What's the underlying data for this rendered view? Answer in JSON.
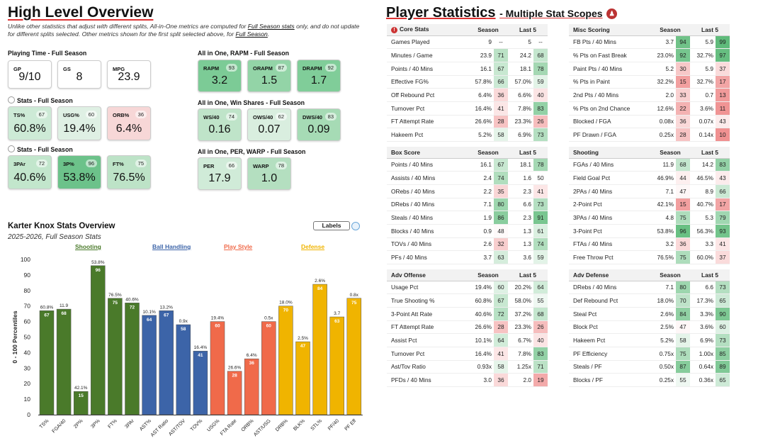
{
  "overview": {
    "title": "High Level Overview",
    "note": [
      "Unlike other statistics that adjust with different splits, All-in-One metrics are computed for ",
      "Full Season stats",
      " only, and do not update",
      "for different splits selected. Other metrics shown for the first split selected above, for ",
      "Full Season",
      "."
    ],
    "playing_time": {
      "title": "Playing Time - Full Season",
      "boxes": [
        {
          "label": "GP",
          "value": "9/10"
        },
        {
          "label": "GS",
          "value": "8"
        },
        {
          "label": "MPG",
          "value": "23.9"
        }
      ]
    },
    "stats1": {
      "title": "Stats - Full Season",
      "boxes": [
        {
          "label": "TS%",
          "pct": "67",
          "value": "60.8%",
          "color": "#cdead6"
        },
        {
          "label": "USG%",
          "pct": "60",
          "value": "19.4%",
          "color": "#dff0e4"
        },
        {
          "label": "ORB%",
          "pct": "36",
          "value": "6.4%",
          "color": "#f7d7d7"
        }
      ]
    },
    "stats2": {
      "title": "Stats - Full Season",
      "boxes": [
        {
          "label": "3PAr",
          "pct": "72",
          "value": "40.6%",
          "color": "#c2e6cc"
        },
        {
          "label": "3P%",
          "pct": "96",
          "value": "53.8%",
          "color": "#6cc28a"
        },
        {
          "label": "FT%",
          "pct": "75",
          "value": "76.5%",
          "color": "#bde3c7"
        }
      ]
    },
    "rapm": {
      "title": "All in One, RAPM - Full Season",
      "boxes": [
        {
          "label": "RAPM",
          "pct": "93",
          "value": "3.2",
          "color": "#7ccb96"
        },
        {
          "label": "ORAPM",
          "pct": "87",
          "value": "1.5",
          "color": "#93d4a7"
        },
        {
          "label": "DRAPM",
          "pct": "92",
          "value": "1.7",
          "color": "#80cd99"
        }
      ]
    },
    "ws": {
      "title": "All in One, Win Shares - Full Season",
      "boxes": [
        {
          "label": "WS/40",
          "pct": "74",
          "value": "0.16",
          "color": "#bfe4c9"
        },
        {
          "label": "OWS/40",
          "pct": "62",
          "value": "0.07",
          "color": "#d9eedf"
        },
        {
          "label": "DWS/40",
          "pct": "83",
          "value": "0.09",
          "color": "#a6dbb5"
        }
      ]
    },
    "per": {
      "title": "All in One, PER, WARP - Full Season",
      "boxes": [
        {
          "label": "PER",
          "pct": "66",
          "value": "17.9",
          "color": "#d0ebd8"
        },
        {
          "label": "WARP",
          "pct": "78",
          "value": "1.0",
          "color": "#b4dfc0"
        }
      ]
    }
  },
  "chart_section": {
    "title": "Karter Knox Stats Overview",
    "subtitle": "2025-2026, Full Season Stats",
    "labels_button": "Labels",
    "groups": [
      {
        "name": "Shooting",
        "color": "#4a7a2a"
      },
      {
        "name": "Ball Handling",
        "color": "#3c64a8"
      },
      {
        "name": "Play Style",
        "color": "#f06a4a"
      },
      {
        "name": "Defense",
        "color": "#f0b400"
      }
    ]
  },
  "chart_data": {
    "type": "bar",
    "ylabel": "0 - 100 Percentiles",
    "ylim": [
      0,
      100
    ],
    "yticks": [
      0,
      10,
      20,
      30,
      40,
      50,
      60,
      70,
      80,
      90,
      100
    ],
    "grid": false,
    "categories": [
      "TS%",
      "FGA/40",
      "2P%",
      "3P%",
      "FT%",
      "3PAr",
      "AST%",
      "AST Ratio",
      "AST/TOV",
      "TOV%",
      "USG%",
      "FTA Rate",
      "ORB%",
      "AST/USG",
      "DRB%",
      "BLK%",
      "STL%",
      "PF/40",
      "PF Eff"
    ],
    "values": [
      67,
      68,
      15,
      96,
      75,
      72,
      64,
      67,
      58,
      41,
      60,
      28,
      36,
      60,
      70,
      47,
      84,
      63,
      75
    ],
    "stat_labels": [
      "60.8%",
      "11.9",
      "42.1%",
      "53.8%",
      "76.5%",
      "40.6%",
      "10.1%",
      "13.2%",
      "0.9x",
      "16.4%",
      "19.4%",
      "26.6%",
      "6.4%",
      "0.5x",
      "18.0%",
      "2.5%",
      "2.6%",
      "3.7",
      "0.8x"
    ],
    "group_index": [
      0,
      0,
      0,
      0,
      0,
      0,
      1,
      1,
      1,
      1,
      2,
      2,
      2,
      2,
      3,
      3,
      3,
      3,
      3
    ]
  },
  "player_stats": {
    "title": "Player Statistics",
    "subtitle": "- Multiple Stat Scopes",
    "col_season": "Season",
    "col_last5": "Last 5",
    "tables": [
      {
        "name": "Core Stats",
        "icon": true,
        "rows": [
          {
            "n": "Games Played",
            "sv": "9",
            "sp": "--",
            "lv": "5",
            "lp": "--"
          },
          {
            "n": "Minutes / Game",
            "sv": "23.9",
            "sp": "71",
            "lv": "24.2",
            "lp": "68"
          },
          {
            "n": "Points / 40 Mins",
            "sv": "16.1",
            "sp": "67",
            "lv": "18.1",
            "lp": "78"
          },
          {
            "n": "Effective FG%",
            "sv": "57.8%",
            "sp": "66",
            "lv": "57.0%",
            "lp": "59"
          },
          {
            "n": "Off Rebound Pct",
            "sv": "6.4%",
            "sp": "36",
            "lv": "6.6%",
            "lp": "40"
          },
          {
            "n": "Turnover Pct",
            "sv": "16.4%",
            "sp": "41",
            "lv": "7.8%",
            "lp": "83"
          },
          {
            "n": "FT Attempt Rate",
            "sv": "26.6%",
            "sp": "28",
            "lv": "23.3%",
            "lp": "26"
          },
          {
            "n": "Hakeem Pct",
            "sv": "5.2%",
            "sp": "58",
            "lv": "6.9%",
            "lp": "73"
          }
        ]
      },
      {
        "name": "Misc Scoring",
        "rows": [
          {
            "n": "FB Pts / 40 Mins",
            "sv": "3.7",
            "sp": "94",
            "lv": "5.9",
            "lp": "99"
          },
          {
            "n": "% Pts on Fast Break",
            "sv": "23.0%",
            "sp": "92",
            "lv": "32.7%",
            "lp": "97"
          },
          {
            "n": "Paint Pts / 40 Mins",
            "sv": "5.2",
            "sp": "30",
            "lv": "5.9",
            "lp": "37"
          },
          {
            "n": "% Pts in Paint",
            "sv": "32.2%",
            "sp": "15",
            "lv": "32.7%",
            "lp": "17"
          },
          {
            "n": "2nd Pts / 40 Mins",
            "sv": "2.0",
            "sp": "33",
            "lv": "0.7",
            "lp": "13"
          },
          {
            "n": "% Pts on 2nd Chance",
            "sv": "12.6%",
            "sp": "22",
            "lv": "3.6%",
            "lp": "11"
          },
          {
            "n": "Blocked / FGA",
            "sv": "0.08x",
            "sp": "36",
            "lv": "0.07x",
            "lp": "43"
          },
          {
            "n": "PF Drawn / FGA",
            "sv": "0.25x",
            "sp": "28",
            "lv": "0.14x",
            "lp": "10"
          }
        ]
      },
      {
        "name": "Box Score",
        "rows": [
          {
            "n": "Points / 40 Mins",
            "sv": "16.1",
            "sp": "67",
            "lv": "18.1",
            "lp": "78"
          },
          {
            "n": "Assists / 40 Mins",
            "sv": "2.4",
            "sp": "74",
            "lv": "1.6",
            "lp": "50"
          },
          {
            "n": "ORebs / 40 Mins",
            "sv": "2.2",
            "sp": "35",
            "lv": "2.3",
            "lp": "41"
          },
          {
            "n": "DRebs / 40 Mins",
            "sv": "7.1",
            "sp": "80",
            "lv": "6.6",
            "lp": "73"
          },
          {
            "n": "Steals / 40 Mins",
            "sv": "1.9",
            "sp": "86",
            "lv": "2.3",
            "lp": "91"
          },
          {
            "n": "Blocks / 40 Mins",
            "sv": "0.9",
            "sp": "48",
            "lv": "1.3",
            "lp": "61"
          },
          {
            "n": "TOVs / 40 Mins",
            "sv": "2.6",
            "sp": "32",
            "lv": "1.3",
            "lp": "74"
          },
          {
            "n": "PFs / 40 Mins",
            "sv": "3.7",
            "sp": "63",
            "lv": "3.6",
            "lp": "59"
          }
        ]
      },
      {
        "name": "Shooting",
        "rows": [
          {
            "n": "FGAs / 40 Mins",
            "sv": "11.9",
            "sp": "68",
            "lv": "14.2",
            "lp": "83"
          },
          {
            "n": "Field Goal Pct",
            "sv": "46.9%",
            "sp": "44",
            "lv": "46.5%",
            "lp": "43"
          },
          {
            "n": "2PAs / 40 Mins",
            "sv": "7.1",
            "sp": "47",
            "lv": "8.9",
            "lp": "66"
          },
          {
            "n": "2-Point Pct",
            "sv": "42.1%",
            "sp": "15",
            "lv": "40.7%",
            "lp": "17"
          },
          {
            "n": "3PAs / 40 Mins",
            "sv": "4.8",
            "sp": "75",
            "lv": "5.3",
            "lp": "79"
          },
          {
            "n": "3-Point Pct",
            "sv": "53.8%",
            "sp": "96",
            "lv": "56.3%",
            "lp": "93"
          },
          {
            "n": "FTAs / 40 Mins",
            "sv": "3.2",
            "sp": "36",
            "lv": "3.3",
            "lp": "41"
          },
          {
            "n": "Free Throw Pct",
            "sv": "76.5%",
            "sp": "75",
            "lv": "60.0%",
            "lp": "37"
          }
        ]
      },
      {
        "name": "Adv Offense",
        "rows": [
          {
            "n": "Usage Pct",
            "sv": "19.4%",
            "sp": "60",
            "lv": "20.2%",
            "lp": "64"
          },
          {
            "n": "True Shooting %",
            "sv": "60.8%",
            "sp": "67",
            "lv": "58.0%",
            "lp": "55"
          },
          {
            "n": "3-Point Att Rate",
            "sv": "40.6%",
            "sp": "72",
            "lv": "37.2%",
            "lp": "68"
          },
          {
            "n": "FT Attempt Rate",
            "sv": "26.6%",
            "sp": "28",
            "lv": "23.3%",
            "lp": "26"
          },
          {
            "n": "Assist Pct",
            "sv": "10.1%",
            "sp": "64",
            "lv": "6.7%",
            "lp": "40"
          },
          {
            "n": "Turnover Pct",
            "sv": "16.4%",
            "sp": "41",
            "lv": "7.8%",
            "lp": "83"
          },
          {
            "n": "Ast/Tov Ratio",
            "sv": "0.93x",
            "sp": "58",
            "lv": "1.25x",
            "lp": "71"
          },
          {
            "n": "PFDs / 40 Mins",
            "sv": "3.0",
            "sp": "36",
            "lv": "2.0",
            "lp": "19"
          }
        ]
      },
      {
        "name": "Adv Defense",
        "rows": [
          {
            "n": "DRebs / 40 Mins",
            "sv": "7.1",
            "sp": "80",
            "lv": "6.6",
            "lp": "73"
          },
          {
            "n": "Def Rebound Pct",
            "sv": "18.0%",
            "sp": "70",
            "lv": "17.3%",
            "lp": "65"
          },
          {
            "n": "Steal Pct",
            "sv": "2.6%",
            "sp": "84",
            "lv": "3.3%",
            "lp": "90"
          },
          {
            "n": "Block Pct",
            "sv": "2.5%",
            "sp": "47",
            "lv": "3.6%",
            "lp": "60"
          },
          {
            "n": "Hakeem Pct",
            "sv": "5.2%",
            "sp": "58",
            "lv": "6.9%",
            "lp": "73"
          },
          {
            "n": "PF Efficiency",
            "sv": "0.75x",
            "sp": "75",
            "lv": "1.00x",
            "lp": "85"
          },
          {
            "n": "Steals / PF",
            "sv": "0.50x",
            "sp": "87",
            "lv": "0.64x",
            "lp": "89"
          },
          {
            "n": "Blocks / PF",
            "sv": "0.25x",
            "sp": "55",
            "lv": "0.36x",
            "lp": "65"
          }
        ]
      }
    ]
  }
}
